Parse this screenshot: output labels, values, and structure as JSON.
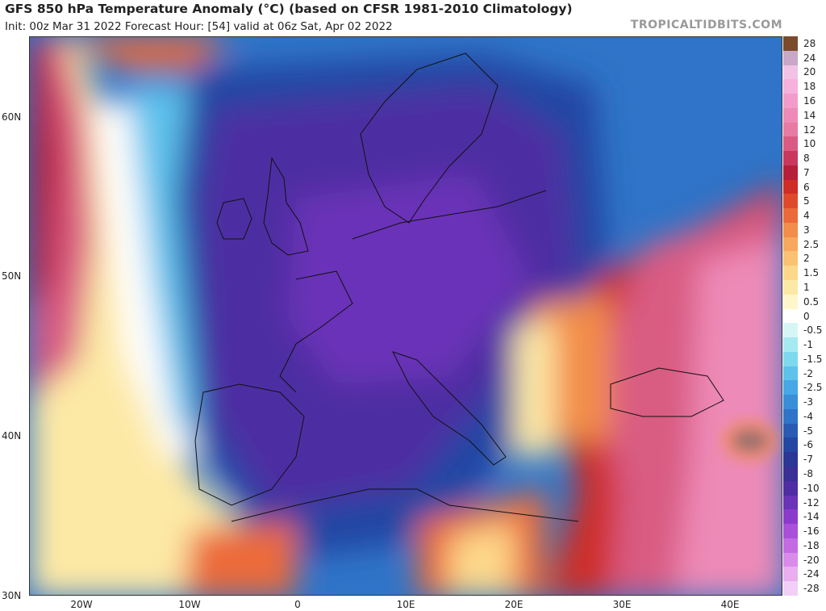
{
  "header": {
    "title": "GFS 850 hPa Temperature Anomaly (°C) (based on CFSR 1981-2010 Climatology)",
    "subtitle": "Init: 00z Mar 31 2022   Forecast Hour: [54]   valid at 06z Sat, Apr 02 2022",
    "brand": "TROPICALTIDBITS.COM"
  },
  "axes": {
    "lat_labels": [
      "60N",
      "50N",
      "40N",
      "30N"
    ],
    "lon_labels": [
      "20W",
      "10W",
      "0",
      "10E",
      "20E",
      "30E",
      "40E"
    ]
  },
  "colorbar": {
    "labels": [
      "28",
      "24",
      "20",
      "18",
      "16",
      "14",
      "12",
      "10",
      "8",
      "7",
      "6",
      "5",
      "4",
      "3",
      "2.5",
      "2",
      "1.5",
      "1",
      "0.5",
      "0",
      "-0.5",
      "-1",
      "-1.5",
      "-2",
      "-2.5",
      "-3",
      "-4",
      "-5",
      "-6",
      "-7",
      "-8",
      "-10",
      "-12",
      "-14",
      "-16",
      "-18",
      "-20",
      "-24",
      "-28"
    ],
    "colors": [
      "#7a4a2a",
      "#c9a7c9",
      "#f1c2e6",
      "#f6b1dc",
      "#f39ccc",
      "#ee8ab7",
      "#e77ba4",
      "#d95b83",
      "#c9375e",
      "#b71e3a",
      "#cf2d27",
      "#e04a2c",
      "#ec6a3a",
      "#f28d4a",
      "#f7a85d",
      "#fbc273",
      "#fdd88b",
      "#fde9a6",
      "#fff6cc",
      "#ffffff",
      "#d6f6f6",
      "#a5eaf0",
      "#7fd9ee",
      "#5ec2ec",
      "#46a8e6",
      "#3a8ed9",
      "#2f74c8",
      "#2a5bb4",
      "#2447a3",
      "#2a3796",
      "#3a2f96",
      "#4e2ea2",
      "#6a33b8",
      "#8a3bcd",
      "#a94fd9",
      "#c46ae3",
      "#d98be9",
      "#e8aef0",
      "#f1cff6"
    ]
  }
}
